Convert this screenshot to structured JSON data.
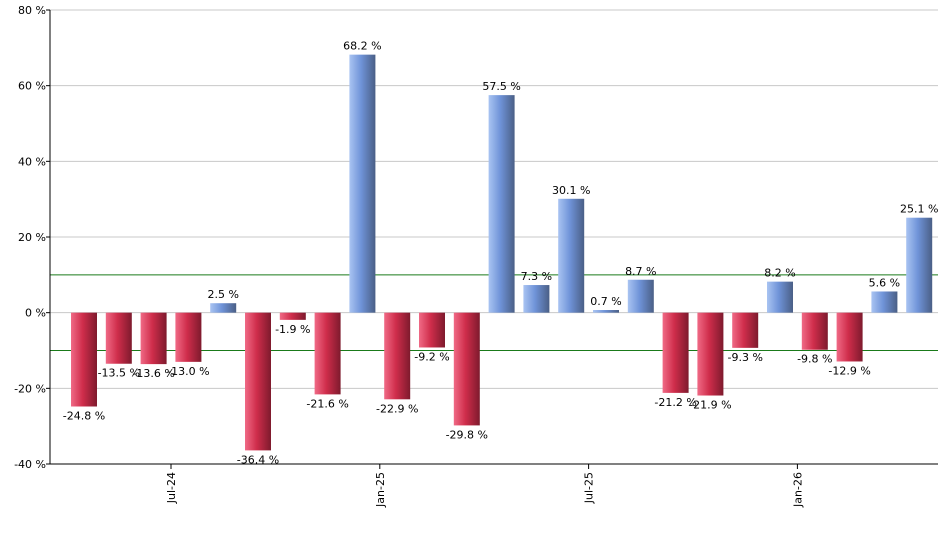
{
  "chart_data": {
    "type": "bar",
    "y_unit_suffix": " %",
    "ylim": [
      -40,
      80
    ],
    "yticks": [
      -40,
      -20,
      0,
      20,
      40,
      60,
      80
    ],
    "grid": true,
    "reference_lines": [
      10,
      -10
    ],
    "x_tick_labels": [
      {
        "label": "Jul-24",
        "after_bar": 2
      },
      {
        "label": "Jan-25",
        "after_bar": 8
      },
      {
        "label": "Jul-25",
        "after_bar": 14
      },
      {
        "label": "Jan-26",
        "after_bar": 20
      }
    ],
    "values": [
      -24.8,
      -13.5,
      -13.6,
      -13.0,
      2.5,
      -36.4,
      -1.9,
      -21.6,
      68.2,
      -22.9,
      -9.2,
      -29.8,
      57.5,
      7.3,
      30.1,
      0.7,
      8.7,
      -21.2,
      -21.9,
      -9.3,
      8.2,
      -9.8,
      -12.9,
      5.6,
      25.1
    ],
    "data_labels": [
      "-24.8 %",
      "-13.5 %",
      "-13.6 %",
      "-13.0 %",
      "2.5 %",
      "-36.4 %",
      "-1.9 %",
      "-21.6 %",
      "68.2 %",
      "-22.9 %",
      "-9.2 %",
      "-29.8 %",
      "57.5 %",
      "7.3 %",
      "30.1 %",
      "0.7 %",
      "8.7 %",
      "-21.2 %",
      "-21.9 %",
      "-9.3 %",
      "8.2 %",
      "-9.8 %",
      "-12.9 %",
      "5.6 %",
      "25.1 %"
    ],
    "colors": {
      "positive_light": "#a9c4f2",
      "positive_mid": "#6f93d8",
      "positive_dark": "#4a5f86",
      "negative_light": "#f06a86",
      "negative_mid": "#cf2d4b",
      "negative_dark": "#7e1a2d",
      "grid": "#c8c8c8",
      "reference_line": "#1a7a1a",
      "axis": "#000000"
    }
  }
}
